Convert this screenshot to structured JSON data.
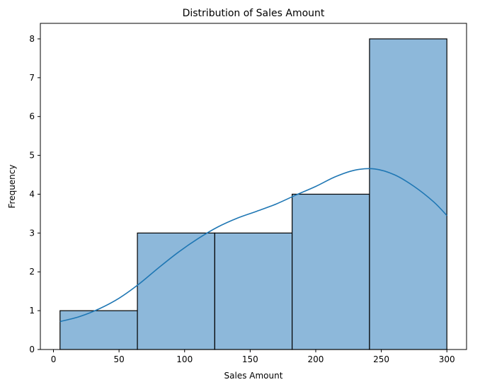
{
  "chart_data": {
    "type": "bar",
    "subtype": "histogram",
    "title": "Distribution of Sales Amount",
    "xlabel": "Sales Amount",
    "ylabel": "Frequency",
    "bin_edges": [
      5,
      64,
      123,
      182,
      241,
      300
    ],
    "values": [
      1,
      3,
      3,
      4,
      8
    ],
    "xlim": [
      -10,
      315
    ],
    "ylim": [
      0,
      8.4
    ],
    "x_ticks": [
      0,
      50,
      100,
      150,
      200,
      250,
      300
    ],
    "y_ticks": [
      0,
      1,
      2,
      3,
      4,
      5,
      6,
      7,
      8
    ],
    "kde": {
      "x": [
        5,
        20,
        35,
        50,
        65,
        80,
        95,
        110,
        125,
        140,
        155,
        170,
        185,
        200,
        215,
        230,
        245,
        260,
        275,
        290,
        300
      ],
      "y": [
        0.72,
        0.85,
        1.05,
        1.32,
        1.68,
        2.1,
        2.5,
        2.85,
        3.15,
        3.38,
        3.56,
        3.75,
        3.98,
        4.2,
        4.45,
        4.62,
        4.65,
        4.5,
        4.2,
        3.8,
        3.45
      ]
    },
    "grid": false,
    "legend": "none",
    "colors": {
      "bar_fill": "#8db8da",
      "bar_edge": "#000000",
      "kde_line": "#1f77b4"
    }
  }
}
